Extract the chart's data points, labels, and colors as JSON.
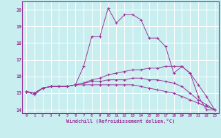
{
  "xlabel": "Windchill (Refroidissement éolien,°C)",
  "background_color": "#c8eef0",
  "grid_color": "#ffffff",
  "line_color": "#993399",
  "xlim": [
    -0.5,
    23.5
  ],
  "ylim": [
    13.8,
    20.5
  ],
  "xticks": [
    0,
    1,
    2,
    3,
    4,
    5,
    6,
    7,
    8,
    9,
    10,
    11,
    12,
    13,
    14,
    15,
    16,
    17,
    18,
    19,
    20,
    21,
    22,
    23
  ],
  "yticks": [
    14,
    15,
    16,
    17,
    18,
    19,
    20
  ],
  "series": [
    [
      15.1,
      14.9,
      15.3,
      15.4,
      15.4,
      15.4,
      15.5,
      16.6,
      18.4,
      18.4,
      20.1,
      19.2,
      19.7,
      19.7,
      19.4,
      18.3,
      18.3,
      17.8,
      16.2,
      16.6,
      16.2,
      14.8,
      14.0,
      14.0
    ],
    [
      15.1,
      15.0,
      15.3,
      15.4,
      15.4,
      15.4,
      15.5,
      15.6,
      15.8,
      15.9,
      16.1,
      16.2,
      16.3,
      16.4,
      16.4,
      16.5,
      16.5,
      16.6,
      16.6,
      16.6,
      16.2,
      15.5,
      14.8,
      14.0
    ],
    [
      15.1,
      15.0,
      15.3,
      15.4,
      15.4,
      15.4,
      15.5,
      15.6,
      15.7,
      15.7,
      15.8,
      15.8,
      15.8,
      15.9,
      15.9,
      15.8,
      15.8,
      15.7,
      15.6,
      15.4,
      15.0,
      14.6,
      14.3,
      14.0
    ],
    [
      15.1,
      15.0,
      15.3,
      15.4,
      15.4,
      15.4,
      15.5,
      15.5,
      15.5,
      15.5,
      15.5,
      15.5,
      15.5,
      15.5,
      15.4,
      15.3,
      15.2,
      15.1,
      15.0,
      14.8,
      14.6,
      14.4,
      14.2,
      14.0
    ]
  ]
}
